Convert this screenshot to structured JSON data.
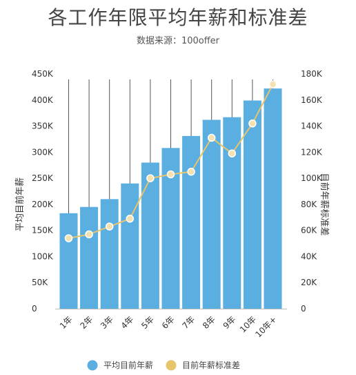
{
  "title": "各工作年限平均年薪和标准差",
  "subtitle": "数据来源：100offer",
  "chart_data": {
    "type": "bar",
    "categories": [
      "1年",
      "2年",
      "3年",
      "4年",
      "5年",
      "6年",
      "7年",
      "8年",
      "9年",
      "10年",
      "10年+"
    ],
    "series": [
      {
        "name": "平均目前年薪",
        "type": "bar",
        "axis": "left",
        "color": "#5aaee0",
        "values": [
          183000,
          195000,
          210000,
          240000,
          280000,
          308000,
          331000,
          362000,
          367000,
          399000,
          422000
        ]
      },
      {
        "name": "目前年薪标准差",
        "type": "line",
        "axis": "right",
        "color": "#e8c46a",
        "values": [
          54000,
          57000,
          63000,
          69000,
          100000,
          103000,
          105000,
          131000,
          119000,
          142000,
          172000
        ]
      }
    ],
    "ylabel": "平均目前年薪",
    "y2label": "目前年薪标准差",
    "ylim": [
      0,
      450000
    ],
    "y2lim": [
      0,
      180000
    ],
    "y_ticks": [
      "0",
      "50K",
      "100K",
      "150K",
      "200K",
      "250K",
      "300K",
      "350K",
      "400K",
      "450K"
    ],
    "y2_ticks": [
      "0",
      "20K",
      "40K",
      "60K",
      "80K",
      "100K",
      "120K",
      "140K",
      "160K",
      "180K"
    ],
    "grid": "vertical",
    "legend": "bottom"
  }
}
